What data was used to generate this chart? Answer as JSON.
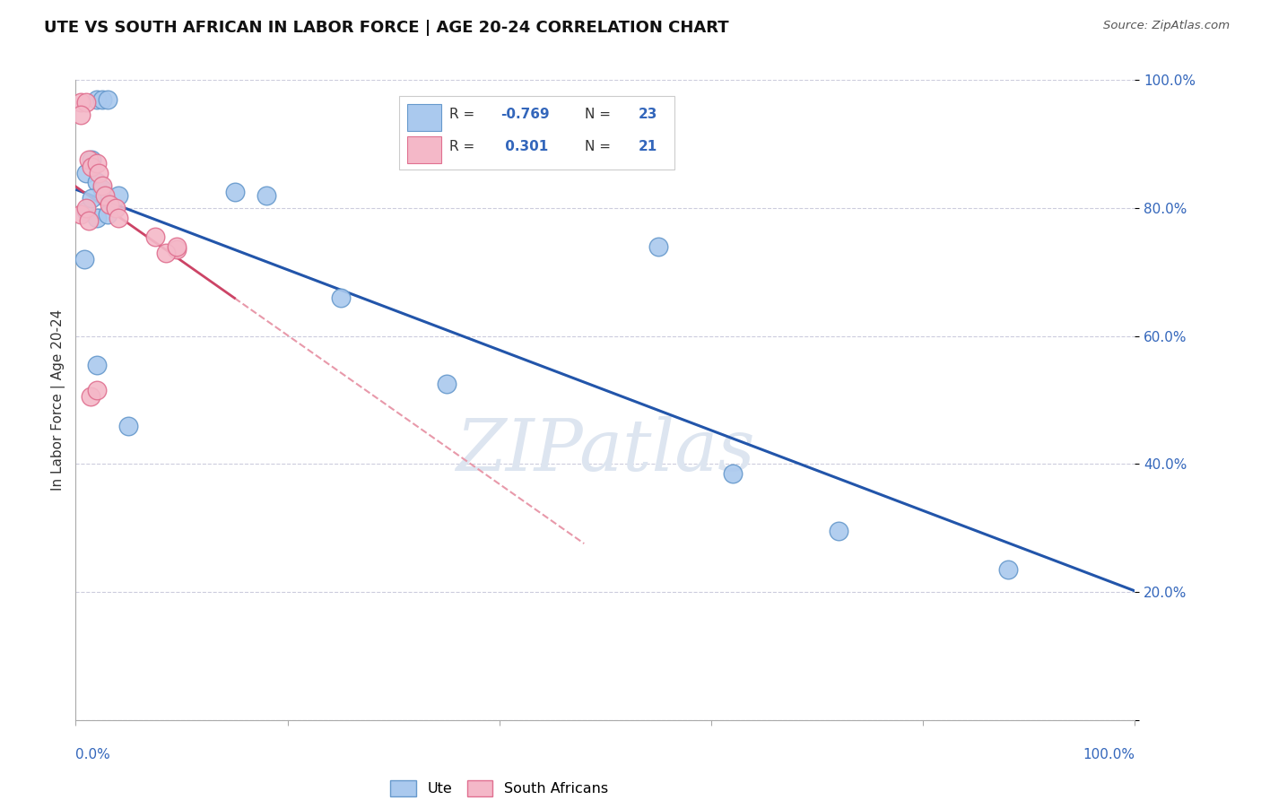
{
  "title": "UTE VS SOUTH AFRICAN IN LABOR FORCE | AGE 20-24 CORRELATION CHART",
  "source": "Source: ZipAtlas.com",
  "ylabel": "In Labor Force | Age 20-24",
  "background_color": "#ffffff",
  "ute_color": "#aac9ee",
  "ute_edge_color": "#6699cc",
  "sa_color": "#f4b8c8",
  "sa_edge_color": "#e07090",
  "blue_line_color": "#2255aa",
  "pink_line_color": "#cc4466",
  "pink_dash_color": "#e899aa",
  "grid_color": "#ccccdd",
  "R_ute": -0.769,
  "N_ute": 23,
  "R_sa": 0.301,
  "N_sa": 21,
  "ute_x": [
    0.02,
    0.025,
    0.03,
    0.01,
    0.015,
    0.02,
    0.025,
    0.01,
    0.015,
    0.02,
    0.03,
    0.04,
    0.15,
    0.18,
    0.008,
    0.25,
    0.35,
    0.55,
    0.62,
    0.72,
    0.88,
    0.02,
    0.05
  ],
  "ute_y": [
    0.97,
    0.97,
    0.97,
    0.855,
    0.875,
    0.84,
    0.83,
    0.795,
    0.815,
    0.785,
    0.79,
    0.82,
    0.825,
    0.82,
    0.72,
    0.66,
    0.525,
    0.74,
    0.385,
    0.295,
    0.235,
    0.555,
    0.46
  ],
  "sa_x": [
    0.005,
    0.01,
    0.005,
    0.012,
    0.015,
    0.02,
    0.022,
    0.025,
    0.028,
    0.032,
    0.038,
    0.04,
    0.005,
    0.01,
    0.012,
    0.075,
    0.095,
    0.014,
    0.02,
    0.085,
    0.095
  ],
  "sa_y": [
    0.965,
    0.965,
    0.945,
    0.875,
    0.865,
    0.87,
    0.855,
    0.835,
    0.82,
    0.805,
    0.8,
    0.785,
    0.79,
    0.8,
    0.78,
    0.755,
    0.735,
    0.505,
    0.515,
    0.73,
    0.74
  ],
  "watermark": "ZIPatlas",
  "watermark_color": "#dde5f0",
  "ytick_vals": [
    0.0,
    0.2,
    0.4,
    0.6,
    0.8,
    1.0
  ],
  "ytick_labels": [
    "",
    "20.0%",
    "40.0%",
    "60.0%",
    "80.0%",
    "100.0%"
  ]
}
